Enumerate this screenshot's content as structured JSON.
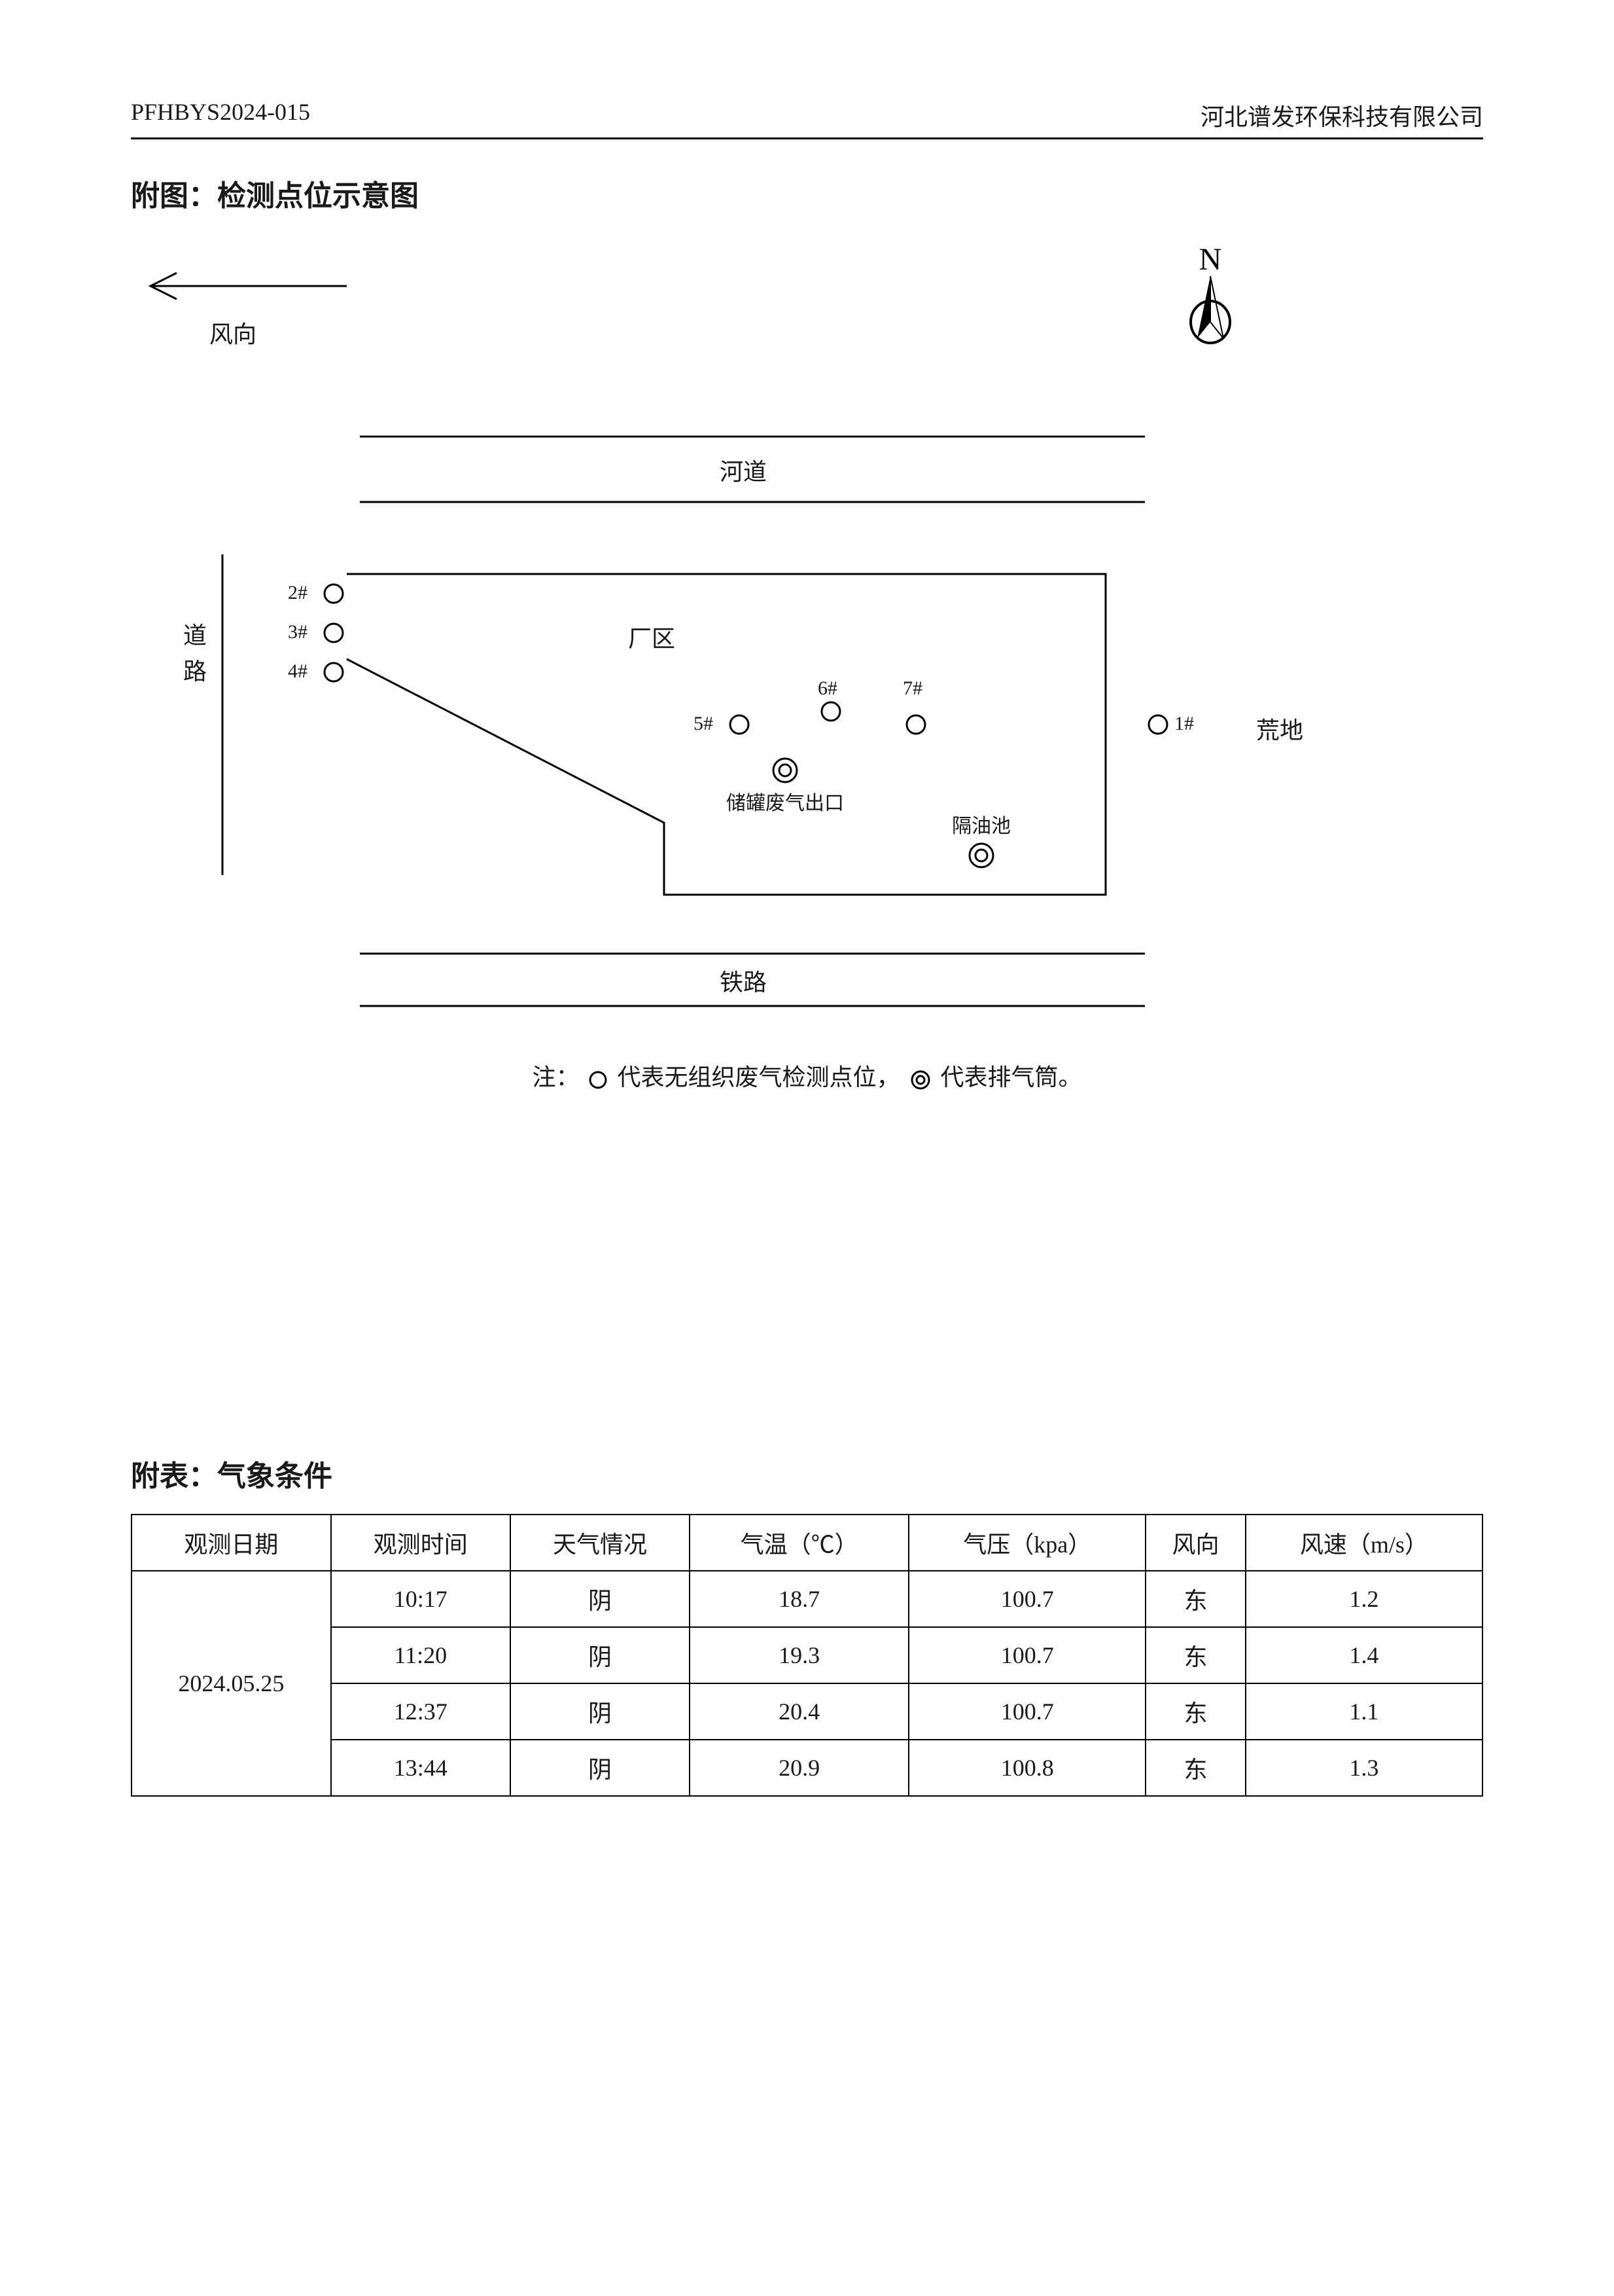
{
  "header": {
    "doc_code": "PFHBYS2024-015",
    "company": "河北谱发环保科技有限公司"
  },
  "section1_title": "附图：检测点位示意图",
  "diagram": {
    "wind_label": "风向",
    "compass_label": "N",
    "river_label": "河道",
    "road_label_1": "道",
    "road_label_2": "路",
    "factory_label": "厂区",
    "wasteland_label": "荒地",
    "railway_label": "铁路",
    "exhaust_label": "储罐废气出口",
    "oil_pool_label": "隔油池",
    "points": {
      "p1": "1#",
      "p2": "2#",
      "p3": "3#",
      "p4": "4#",
      "p5": "5#",
      "p6": "6#",
      "p7": "7#"
    },
    "legend_prefix": "注：",
    "legend_text_1": " 代表无组织废气检测点位，",
    "legend_text_2": " 代表排气筒。",
    "line_color": "#000000",
    "circle_stroke": "#000000",
    "circle_fill": "#ffffff",
    "line_width": 3
  },
  "section2_title": "附表：气象条件",
  "table": {
    "columns": [
      "观测日期",
      "观测时间",
      "天气情况",
      "气温（℃）",
      "气压（kpa）",
      "风向",
      "风速（m/s）"
    ],
    "date": "2024.05.25",
    "rows": [
      [
        "10:17",
        "阴",
        "18.7",
        "100.7",
        "东",
        "1.2"
      ],
      [
        "11:20",
        "阴",
        "19.3",
        "100.7",
        "东",
        "1.4"
      ],
      [
        "12:37",
        "阴",
        "20.4",
        "100.7",
        "东",
        "1.1"
      ],
      [
        "13:44",
        "阴",
        "20.9",
        "100.8",
        "东",
        "1.3"
      ]
    ]
  }
}
